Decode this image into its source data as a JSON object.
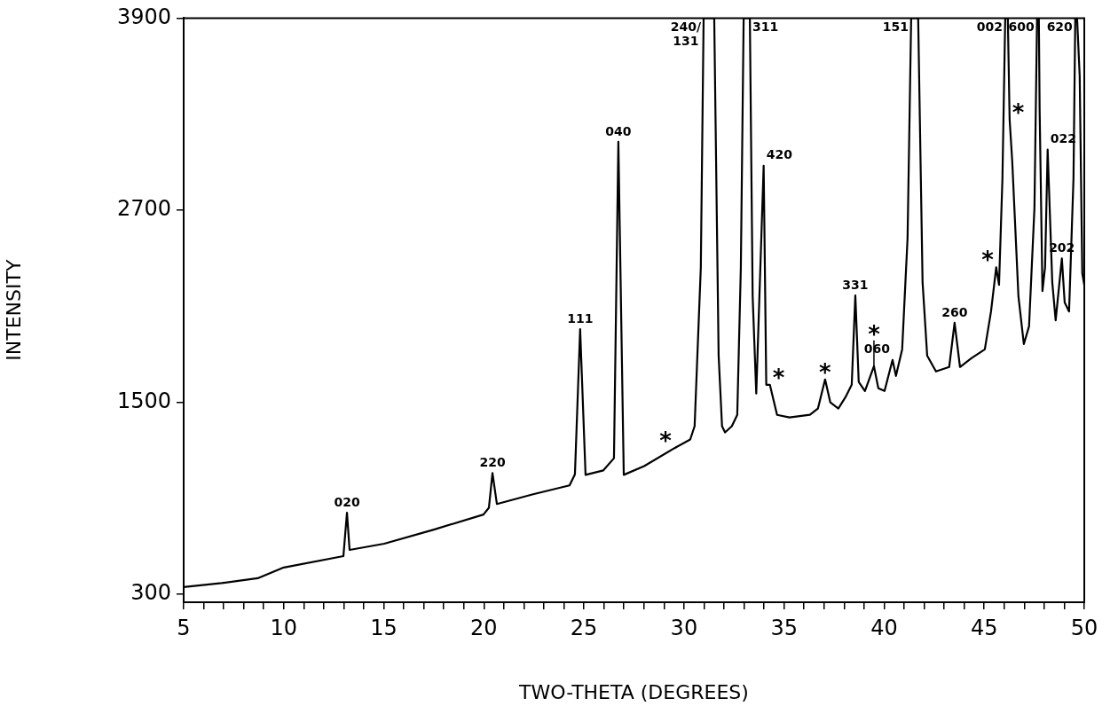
{
  "chart_data": {
    "type": "line",
    "xlabel": "TWO-THETA (DEGREES)",
    "ylabel": "INTENSITY",
    "series": [
      {
        "color": "#000000",
        "x": [
          5.0,
          6.9,
          8.7,
          10.0,
          12.98,
          13.16,
          13.29,
          15.02,
          17.5,
          19.98,
          20.25,
          20.43,
          20.65,
          22.46,
          24.28,
          24.55,
          24.81,
          25.08,
          25.97,
          26.5,
          26.72,
          26.99,
          28.01,
          29.51,
          30.31,
          30.53,
          30.84,
          30.98,
          31.51,
          31.73,
          31.9,
          32.05,
          32.39,
          32.66,
          32.84,
          32.98,
          33.29,
          33.43,
          33.61,
          33.98,
          34.11,
          34.29,
          34.65,
          35.27,
          36.29,
          36.69,
          37.05,
          37.31,
          37.71,
          38.07,
          38.38,
          38.56,
          38.73,
          39.04,
          39.49,
          39.71,
          40.02,
          40.42,
          40.59,
          40.9,
          41.17,
          41.35,
          41.7,
          41.92,
          42.15,
          42.59,
          43.25,
          43.52,
          43.79,
          44.36,
          45.03,
          45.34,
          45.6,
          45.74,
          45.91,
          46.05,
          46.18,
          46.27,
          46.4,
          46.71,
          46.98,
          47.24,
          47.51,
          47.64,
          47.73,
          47.77,
          47.91,
          48.04,
          48.17,
          48.4,
          48.57,
          48.88,
          49.02,
          49.24,
          49.46,
          49.55,
          49.64,
          49.77,
          49.9,
          50.0
        ],
        "values": [
          345,
          370,
          400,
          467,
          538,
          809,
          577,
          616,
          704,
          798,
          840,
          1057,
          864,
          925,
          980,
          1050,
          1957,
          1046,
          1074,
          1150,
          3127,
          1046,
          1101,
          1212,
          1267,
          1350,
          2343,
          3900,
          3900,
          1791,
          1350,
          1311,
          1350,
          1421,
          2343,
          3900,
          3900,
          2161,
          1554,
          2978,
          1609,
          1609,
          1421,
          1405,
          1421,
          1460,
          1642,
          1499,
          1460,
          1532,
          1609,
          2167,
          1626,
          1570,
          1725,
          1587,
          1570,
          1764,
          1664,
          1830,
          2526,
          3900,
          3900,
          2250,
          1791,
          1692,
          1720,
          1996,
          1720,
          1775,
          1830,
          2067,
          2343,
          2233,
          2895,
          3900,
          3900,
          3265,
          3006,
          2161,
          1863,
          1974,
          2713,
          3900,
          3900,
          3320,
          2194,
          2343,
          3078,
          2250,
          2012,
          2398,
          2123,
          2067,
          2895,
          3900,
          3900,
          3541,
          2305,
          2233
        ]
      }
    ],
    "xlim": [
      5,
      50
    ],
    "xticks": [
      5,
      {
        "value": 6,
        "label": null
      },
      {
        "value": 7,
        "label": null
      },
      {
        "value": 8,
        "label": null
      },
      {
        "value": 9,
        "label": null
      },
      10,
      {
        "value": 11,
        "label": null
      },
      {
        "value": 12,
        "label": null
      },
      {
        "value": 13,
        "label": null
      },
      {
        "value": 14,
        "label": null
      },
      15,
      {
        "value": 16,
        "label": null
      },
      {
        "value": 17,
        "label": null
      },
      {
        "value": 18,
        "label": null
      },
      {
        "value": 19,
        "label": null
      },
      20,
      {
        "value": 21,
        "label": null
      },
      {
        "value": 22,
        "label": null
      },
      {
        "value": 23,
        "label": null
      },
      {
        "value": 24,
        "label": null
      },
      25,
      {
        "value": 26,
        "label": null
      },
      {
        "value": 27,
        "label": null
      },
      {
        "value": 28,
        "label": null
      },
      {
        "value": 29,
        "label": null
      },
      30,
      {
        "value": 31,
        "label": null
      },
      {
        "value": 32,
        "label": null
      },
      {
        "value": 33,
        "label": null
      },
      {
        "value": 34,
        "label": null
      },
      35,
      {
        "value": 36,
        "label": null
      },
      {
        "value": 37,
        "label": null
      },
      {
        "value": 38,
        "label": null
      },
      {
        "value": 39,
        "label": null
      },
      40,
      {
        "value": 41,
        "label": null
      },
      {
        "value": 42,
        "label": null
      },
      {
        "value": 43,
        "label": null
      },
      {
        "value": 44,
        "label": null
      },
      45,
      {
        "value": 46,
        "label": null
      },
      {
        "value": 47,
        "label": null
      },
      {
        "value": 48,
        "label": null
      },
      {
        "value": 49,
        "label": null
      },
      50
    ],
    "ylim": [
      250,
      3900
    ],
    "yticks": [
      300,
      1500,
      2700,
      3900
    ],
    "grid": false,
    "legend": false,
    "marker": "none",
    "line_style": "solid",
    "annotations": [
      {
        "text": "020",
        "x": 13.16,
        "y": 809
      },
      {
        "text": "220",
        "x": 20.43,
        "y": 1057
      },
      {
        "text": "111",
        "x": 24.81,
        "y": 1957
      },
      {
        "text": "040",
        "x": 26.72,
        "y": 3127
      },
      {
        "text": "240/\n131",
        "x": 30.98,
        "y": 3900
      },
      {
        "text": "311",
        "x": 33.29,
        "y": 3900
      },
      {
        "text": "420",
        "x": 33.98,
        "y": 2978
      },
      {
        "text": "331",
        "x": 38.56,
        "y": 2167
      },
      {
        "text": "151",
        "x": 41.35,
        "y": 3900
      },
      {
        "text": "002",
        "x": 46.05,
        "y": 3900
      },
      {
        "text": "620",
        "x": 49.55,
        "y": 3900
      },
      {
        "text": "600",
        "x": 47.64,
        "y": 3900
      },
      {
        "text": "022",
        "x": 48.17,
        "y": 3078
      },
      {
        "text": "260",
        "x": 43.52,
        "y": 1996
      },
      {
        "text": "202",
        "x": 48.88,
        "y": 2398
      },
      {
        "text": "060",
        "x": 40.42,
        "y": 1764
      },
      {
        "text": "*",
        "x": 29.51,
        "y": 1212
      },
      {
        "text": "*",
        "x": 34.29,
        "y": 1609
      },
      {
        "text": "*",
        "x": 37.05,
        "y": 1642
      },
      {
        "text": "*",
        "x": 39.49,
        "y": 1725
      },
      {
        "text": "*",
        "x": 45.6,
        "y": 2343
      },
      {
        "text": "*",
        "x": 46.27,
        "y": 3265
      }
    ]
  }
}
